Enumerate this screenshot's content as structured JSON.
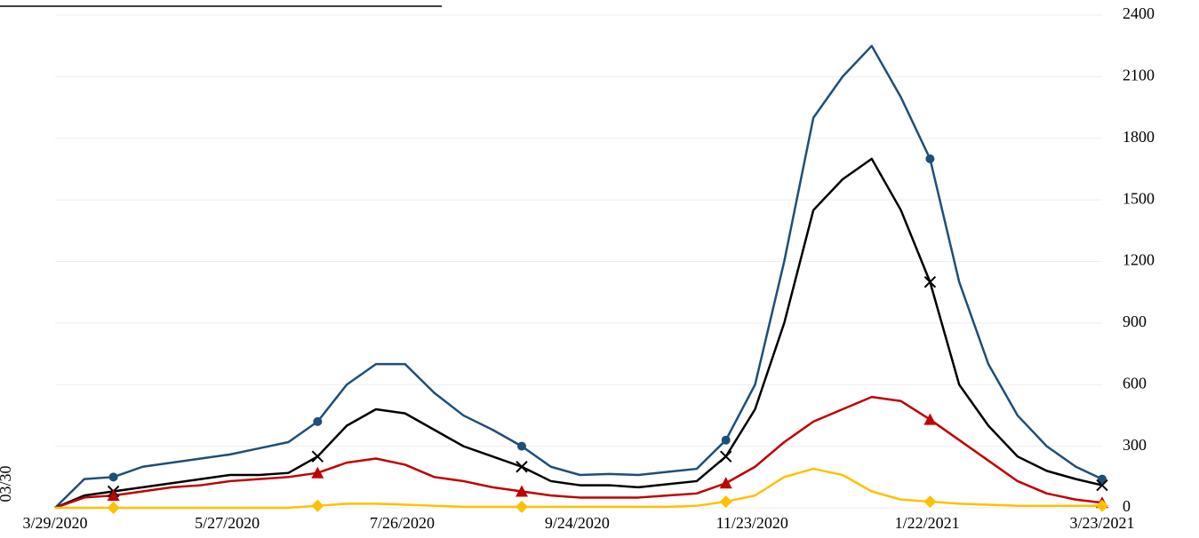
{
  "chart_data": {
    "type": "line",
    "annotation": "03/30",
    "x": [
      "3/29/2020",
      "4/8/2020",
      "4/18/2020",
      "4/28/2020",
      "5/8/2020",
      "5/18/2020",
      "5/28/2020",
      "6/7/2020",
      "6/17/2020",
      "6/27/2020",
      "7/7/2020",
      "7/17/2020",
      "7/27/2020",
      "8/6/2020",
      "8/16/2020",
      "8/26/2020",
      "9/5/2020",
      "9/15/2020",
      "9/25/2020",
      "10/5/2020",
      "10/15/2020",
      "10/25/2020",
      "11/4/2020",
      "11/14/2020",
      "11/24/2020",
      "12/4/2020",
      "12/14/2020",
      "12/24/2020",
      "1/3/2021",
      "1/13/2021",
      "1/23/2021",
      "2/2/2021",
      "2/12/2021",
      "2/22/2021",
      "3/4/2021",
      "3/14/2021",
      "3/23/2021"
    ],
    "series": [
      {
        "color": "#1f4e79",
        "marker": "circle",
        "values": [
          0,
          140,
          150,
          200,
          220,
          240,
          260,
          290,
          320,
          420,
          600,
          700,
          700,
          560,
          450,
          380,
          300,
          200,
          160,
          165,
          160,
          175,
          190,
          330,
          600,
          1200,
          1900,
          2100,
          2250,
          2000,
          1700,
          1100,
          700,
          450,
          300,
          200,
          140
        ]
      },
      {
        "color": "#000000",
        "marker": "x",
        "values": [
          0,
          60,
          80,
          100,
          120,
          140,
          160,
          160,
          170,
          250,
          400,
          480,
          460,
          380,
          300,
          250,
          200,
          130,
          110,
          110,
          100,
          115,
          130,
          250,
          480,
          900,
          1450,
          1600,
          1700,
          1450,
          1100,
          600,
          400,
          250,
          180,
          140,
          110
        ]
      },
      {
        "color": "#c00000",
        "marker": "triangle",
        "values": [
          0,
          50,
          60,
          80,
          100,
          110,
          130,
          140,
          150,
          170,
          220,
          240,
          210,
          150,
          130,
          100,
          80,
          60,
          50,
          50,
          50,
          60,
          70,
          120,
          200,
          320,
          420,
          480,
          540,
          520,
          430,
          330,
          230,
          130,
          70,
          40,
          25
        ]
      },
      {
        "color": "#ffc000",
        "marker": "diamond",
        "values": [
          0,
          0,
          0,
          0,
          0,
          0,
          0,
          0,
          0,
          10,
          20,
          20,
          15,
          10,
          5,
          5,
          5,
          5,
          5,
          5,
          5,
          5,
          10,
          30,
          60,
          150,
          190,
          160,
          80,
          40,
          30,
          20,
          15,
          10,
          10,
          10,
          10
        ]
      }
    ],
    "xlim": [
      "3/29/2020",
      "3/23/2021"
    ],
    "xticks": [
      "3/29/2020",
      "5/27/2020",
      "7/26/2020",
      "9/24/2020",
      "11/23/2020",
      "1/22/2021",
      "3/23/2021"
    ],
    "ylim": [
      0,
      2400
    ],
    "yticks": [
      0,
      300,
      600,
      900,
      1200,
      1500,
      1800,
      2100,
      2400
    ],
    "y_axis_side": "right",
    "grid": true
  }
}
